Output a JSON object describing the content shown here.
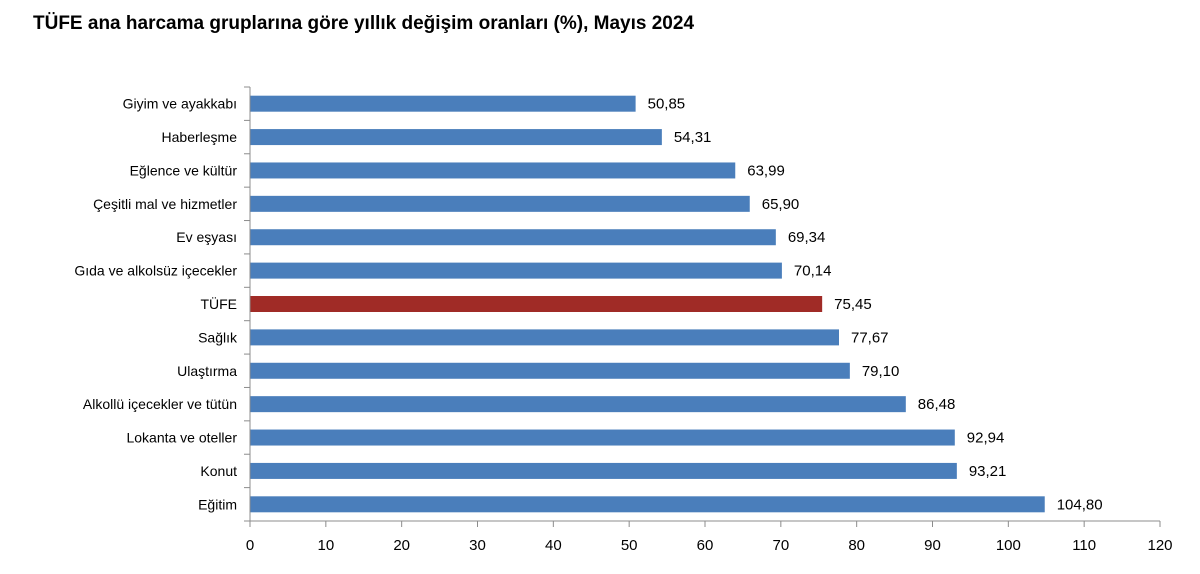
{
  "chart_data": {
    "type": "bar",
    "orientation": "horizontal",
    "title": "TÜFE ana harcama gruplarına göre yıllık değişim oranları (%), Mayıs 2024",
    "categories": [
      "Giyim ve ayakkabı",
      "Haberleşme",
      "Eğlence ve kültür",
      "Çeşitli mal ve hizmetler",
      "Ev eşyası",
      "Gıda ve alkolsüz içecekler",
      "TÜFE",
      "Sağlık",
      "Ulaştırma",
      "Alkollü içecekler ve tütün",
      "Lokanta ve oteller",
      "Konut",
      "Eğitim"
    ],
    "values": [
      50.85,
      54.31,
      63.99,
      65.9,
      69.34,
      70.14,
      75.45,
      77.67,
      79.1,
      86.48,
      92.94,
      93.21,
      104.8
    ],
    "value_labels": [
      "50,85",
      "54,31",
      "63,99",
      "65,90",
      "69,34",
      "70,14",
      "75,45",
      "77,67",
      "79,10",
      "86,48",
      "92,94",
      "93,21",
      "104,80"
    ],
    "highlight_category": "TÜFE",
    "xlim": [
      0,
      120
    ],
    "xticks": [
      0,
      10,
      20,
      30,
      40,
      50,
      60,
      70,
      80,
      90,
      100,
      110,
      120
    ],
    "grid": false,
    "colors": {
      "bar": "#4a7ebb",
      "highlight": "#a02b26",
      "axis": "#8c8c8c"
    }
  }
}
